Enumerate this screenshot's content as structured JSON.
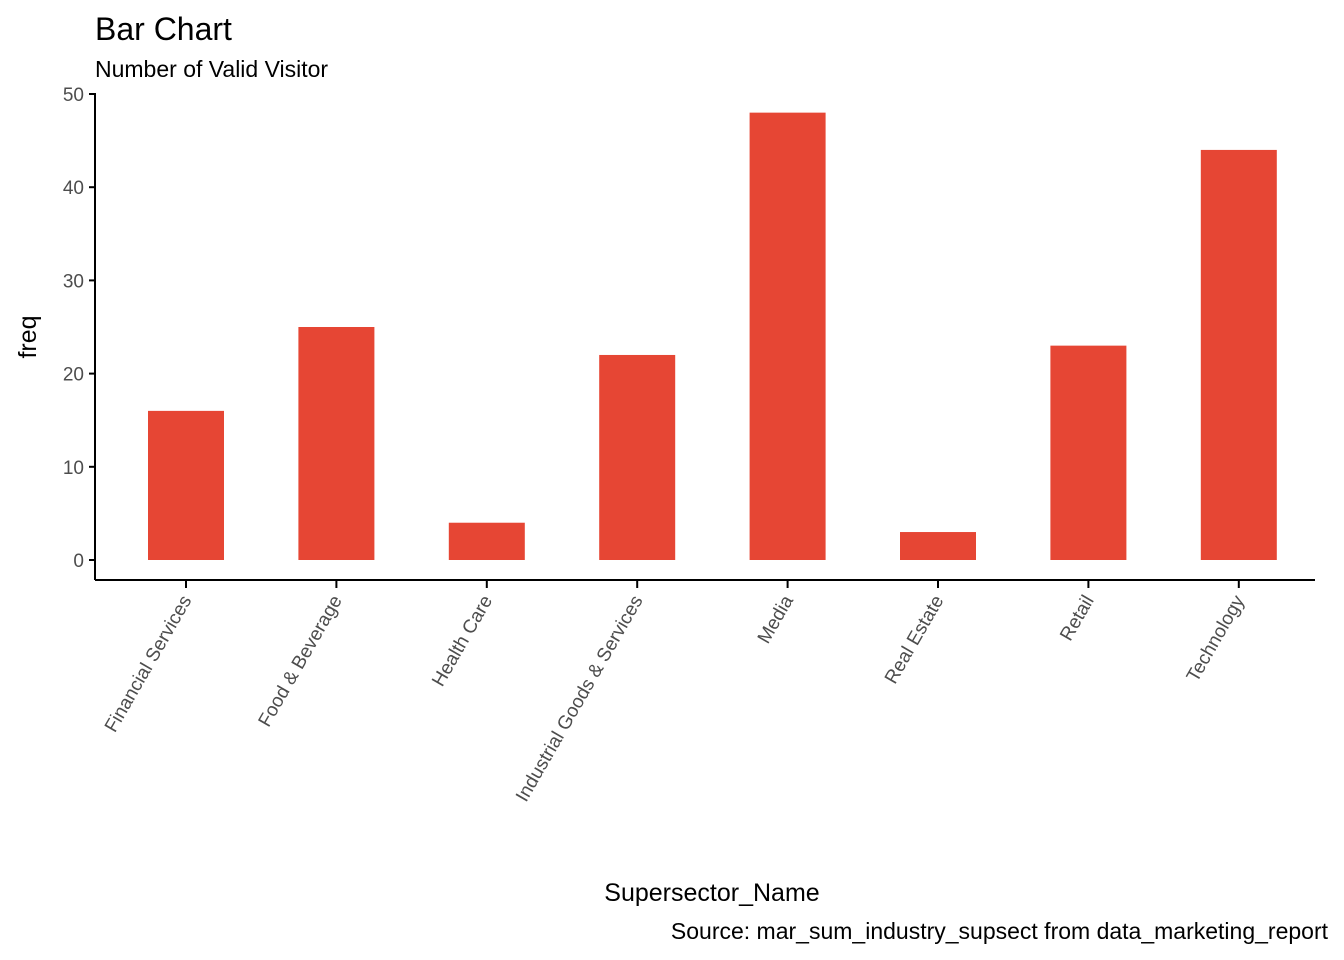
{
  "chart_data": {
    "type": "bar",
    "title": "Bar Chart",
    "subtitle": "Number of Valid Visitor",
    "xlabel": "Supersector_Name",
    "ylabel": "freq",
    "caption": "Source: mar_sum_industry_supsect from data_marketing_report",
    "categories": [
      "Financial Services",
      "Food & Beverage",
      "Health Care",
      "Industrial Goods & Services",
      "Media",
      "Real Estate",
      "Retail",
      "Technology"
    ],
    "values": [
      16,
      25,
      4,
      22,
      48,
      3,
      23,
      44
    ],
    "ylim": [
      0,
      50
    ],
    "yticks": [
      0,
      10,
      20,
      30,
      40,
      50
    ],
    "bar_color": "#E64634",
    "grid": false,
    "legend": "none"
  }
}
